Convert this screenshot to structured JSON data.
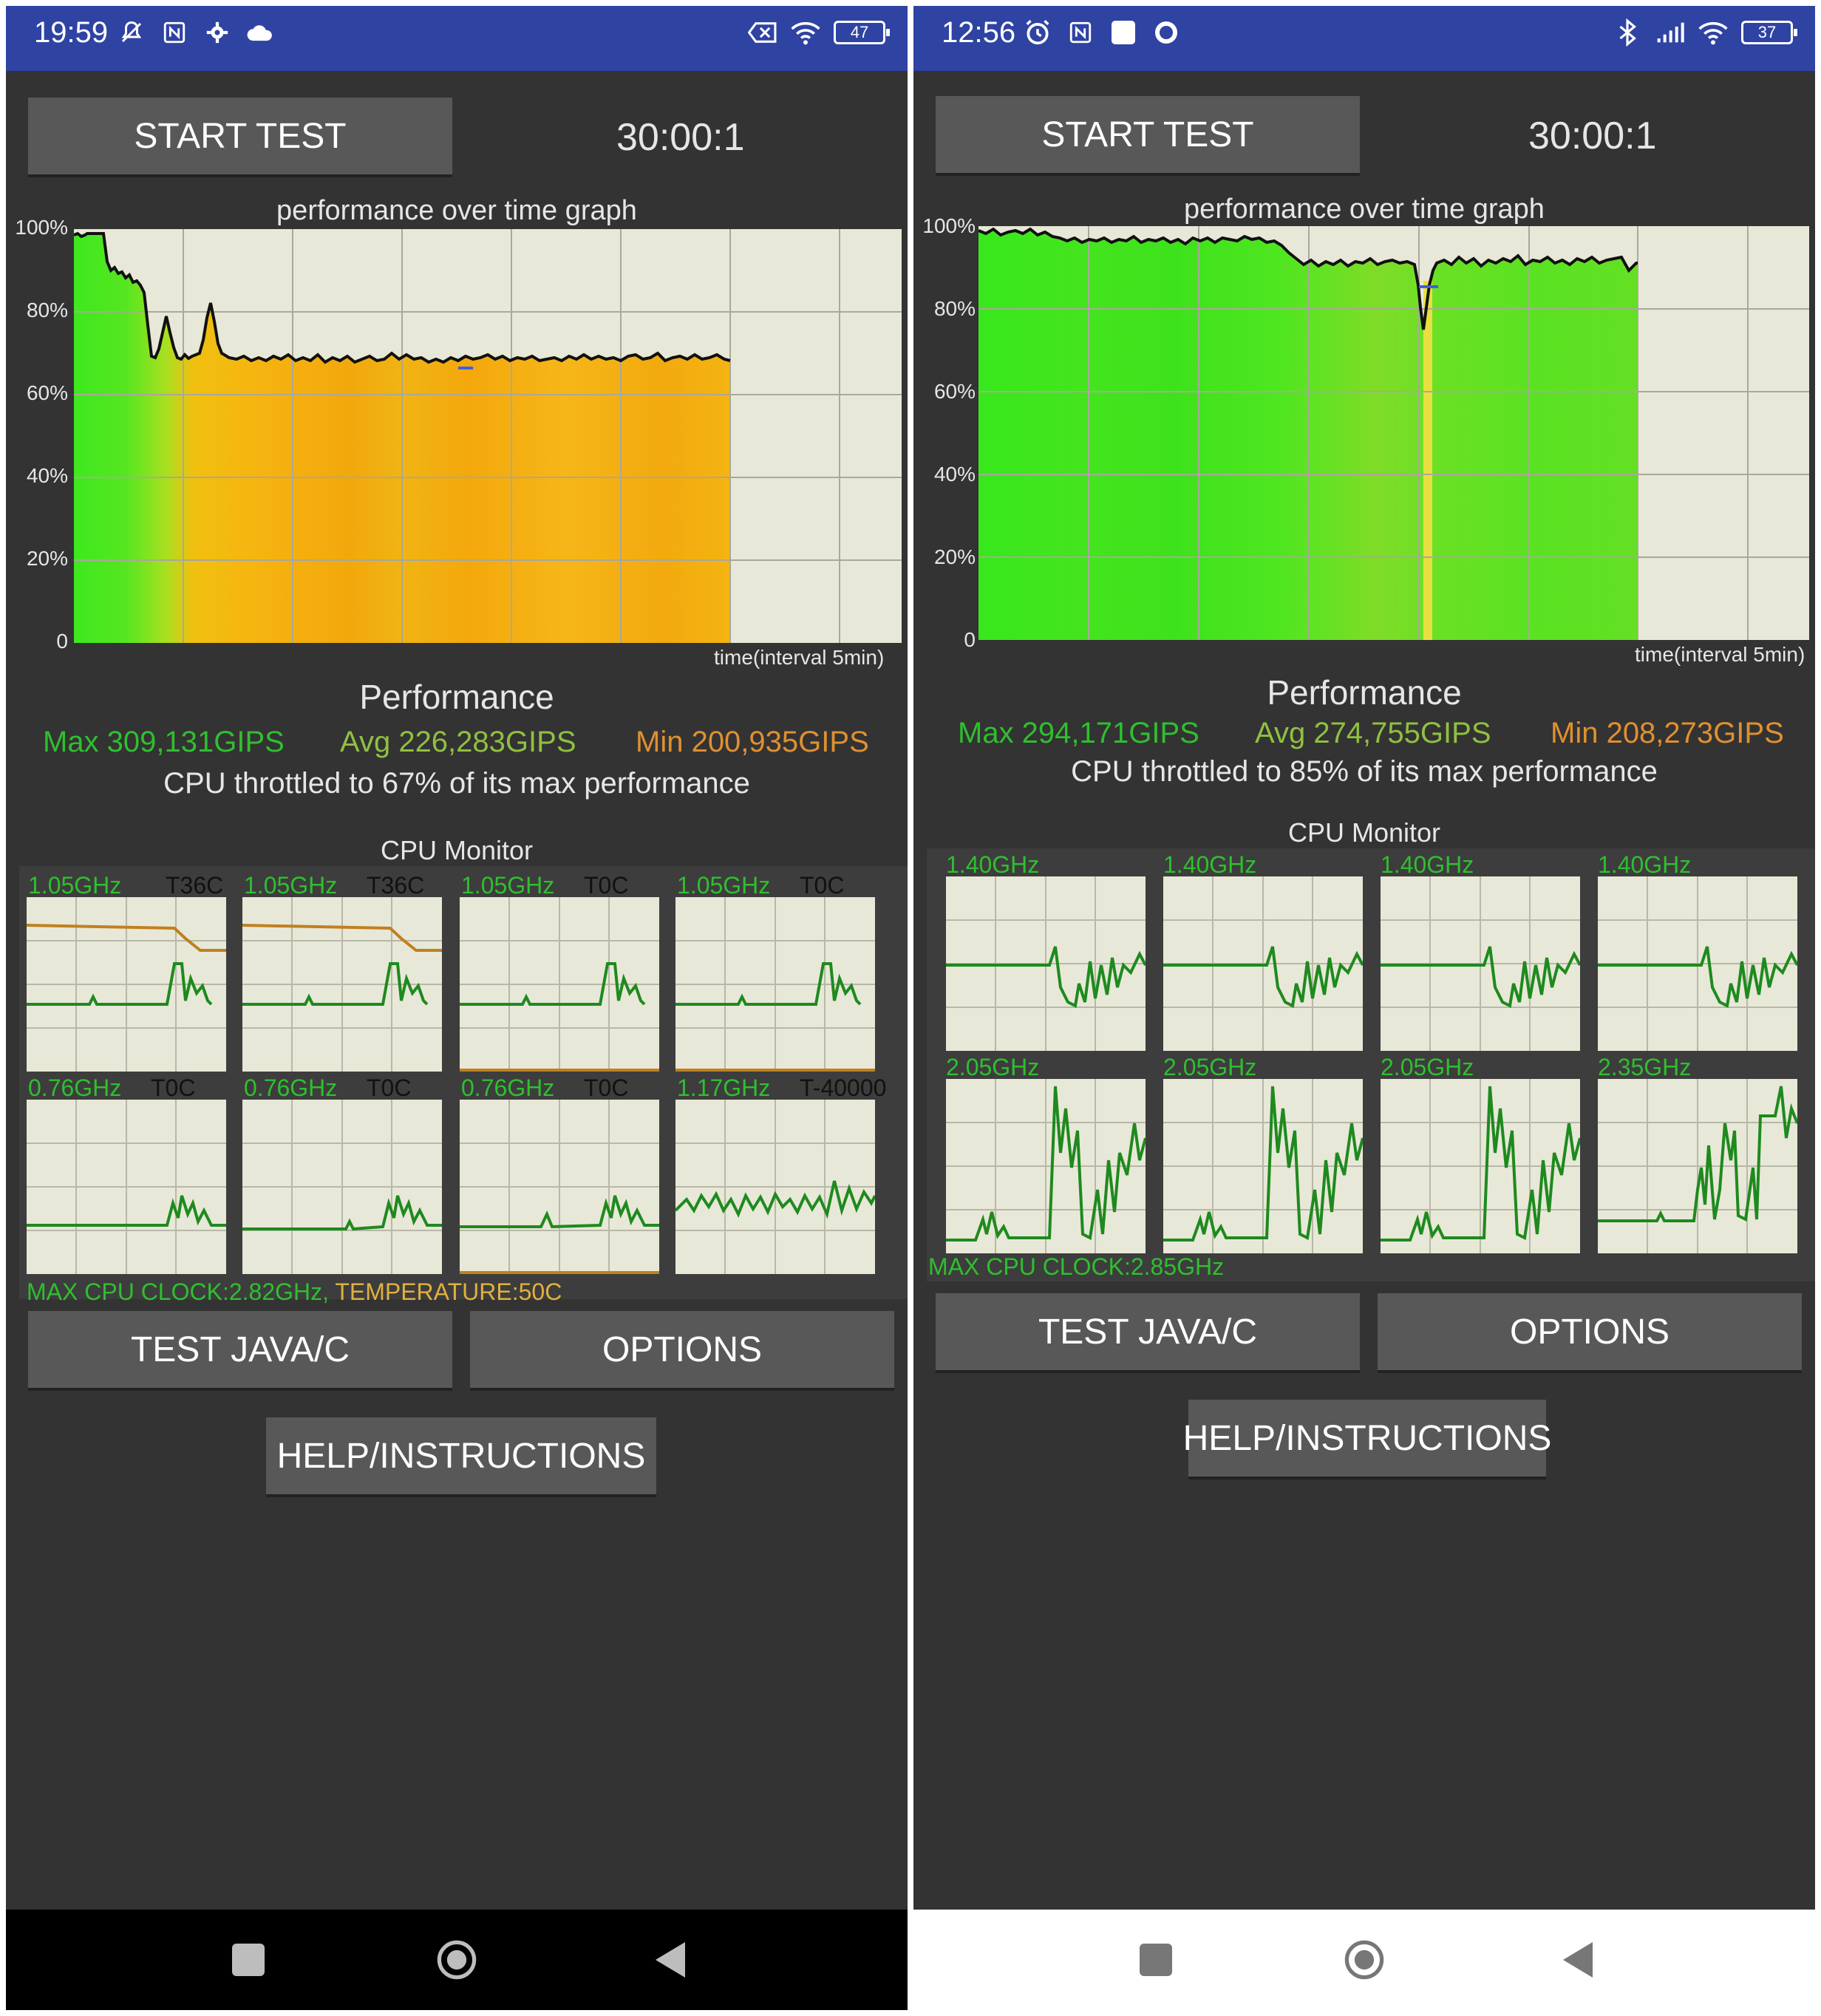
{
  "left": {
    "status": {
      "time": "19:59",
      "battery": "47"
    },
    "start_label": "START TEST",
    "timer": "30:00:1",
    "graph_title": "performance over time graph",
    "yticks": [
      "100%",
      "80%",
      "60%",
      "40%",
      "20%",
      "0"
    ],
    "xlabel": "time(interval 5min)",
    "perf_title": "Performance",
    "max": "Max 309,131GIPS",
    "avg": "Avg 226,283GIPS",
    "min": "Min 200,935GIPS",
    "throttle": "CPU throttled to 67% of its max performance",
    "cpu_monitor_title": "CPU Monitor",
    "cores": [
      {
        "freq": "1.05GHz",
        "temp": "T36C"
      },
      {
        "freq": "1.05GHz",
        "temp": "T36C"
      },
      {
        "freq": "1.05GHz",
        "temp": "T0C"
      },
      {
        "freq": "1.05GHz",
        "temp": "T0C"
      },
      {
        "freq": "0.76GHz",
        "temp": "T0C"
      },
      {
        "freq": "0.76GHz",
        "temp": "T0C"
      },
      {
        "freq": "0.76GHz",
        "temp": "T0C"
      },
      {
        "freq": "1.17GHz",
        "temp": "T-40000"
      }
    ],
    "max_clock": "MAX CPU CLOCK:2.82GHz,",
    "temperature": " TEMPERATURE:50C",
    "test_label": "TEST JAVA/C",
    "options_label": "OPTIONS",
    "help_label": "HELP/INSTRUCTIONS"
  },
  "right": {
    "status": {
      "time": "12:56",
      "battery": "37"
    },
    "start_label": "START TEST",
    "timer": "30:00:1",
    "graph_title": "performance over time graph",
    "yticks": [
      "100%",
      "80%",
      "60%",
      "40%",
      "20%",
      "0"
    ],
    "xlabel": "time(interval 5min)",
    "perf_title": "Performance",
    "max": "Max 294,171GIPS",
    "avg": "Avg 274,755GIPS",
    "min": "Min 208,273GIPS",
    "throttle": "CPU throttled to 85% of its max performance",
    "cpu_monitor_title": "CPU Monitor",
    "cores": [
      {
        "freq": "1.40GHz"
      },
      {
        "freq": "1.40GHz"
      },
      {
        "freq": "1.40GHz"
      },
      {
        "freq": "1.40GHz"
      },
      {
        "freq": "2.05GHz"
      },
      {
        "freq": "2.05GHz"
      },
      {
        "freq": "2.05GHz"
      },
      {
        "freq": "2.35GHz"
      }
    ],
    "max_clock": "MAX CPU CLOCK:2.85GHz",
    "test_label": "TEST JAVA/C",
    "options_label": "OPTIONS",
    "help_label": "HELP/INSTRUCTIONS"
  },
  "colors": {
    "statusbar": "#2f43a3",
    "background": "#333333",
    "button": "#585858",
    "max": "#2fbf2f",
    "avg": "#90c040",
    "min": "#e09030",
    "graph_bg": "#e8e8d8",
    "core_line": "#1e8a1e",
    "temp_line": "#c08020"
  },
  "icons": {
    "left_status": [
      "mute-icon",
      "nfc-icon",
      "gear-icon",
      "cloud-icon",
      "sim-off-icon",
      "wifi-icon",
      "battery-icon"
    ],
    "right_status": [
      "alarm-icon",
      "nfc-icon",
      "square-icon",
      "circle-icon",
      "bluetooth-icon",
      "signal-icon",
      "wifi-icon",
      "battery-icon"
    ],
    "nav": [
      "recents-icon",
      "home-icon",
      "back-icon"
    ]
  }
}
